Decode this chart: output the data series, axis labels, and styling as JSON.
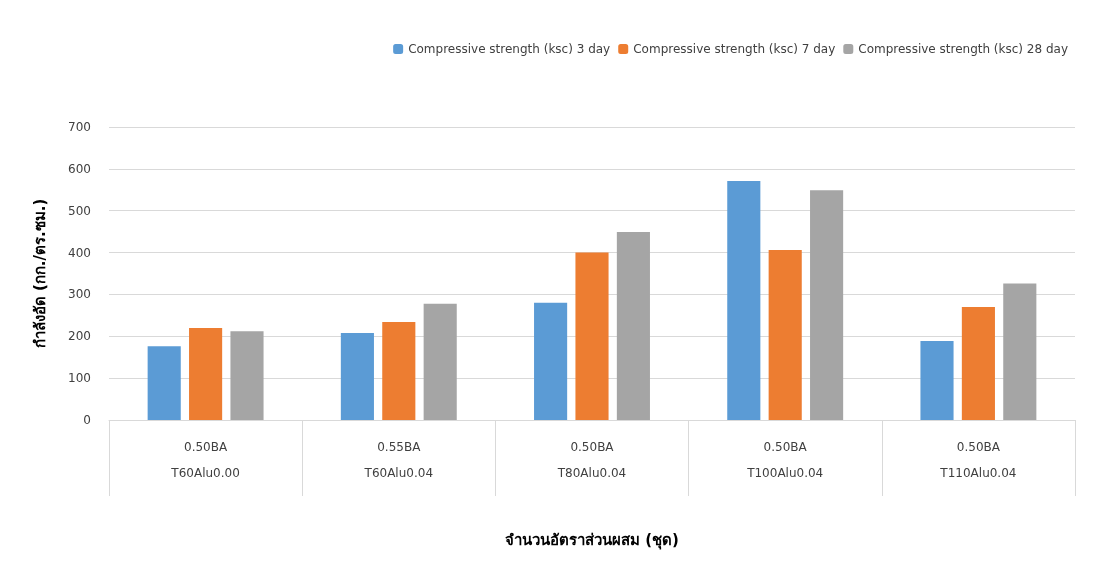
{
  "chart_data": {
    "type": "bar",
    "xlabel": "จำนวนอัตราส่วนผสม (ชุด)",
    "ylabel": "กำลังอัด (กก./ตร.ซม.)",
    "categories": [
      "0.50BA\nT60Alu0.00",
      "0.55BA\nT60Alu0.04",
      "0.50BA\nT80Alu0.04",
      "0.50BA\nT100Alu0.04",
      "0.50BA\nT110Alu0.04"
    ],
    "series": [
      {
        "name": "Compressive strength (ksc) 3 day",
        "color": "#5b9bd5",
        "values": [
          176,
          208,
          280,
          571,
          189
        ]
      },
      {
        "name": "Compressive strength (ksc) 7 day",
        "color": "#ed7d31",
        "values": [
          220,
          234,
          400,
          406,
          270
        ]
      },
      {
        "name": "Compressive strength (ksc) 28 day",
        "color": "#a5a5a5",
        "values": [
          212,
          278,
          449,
          549,
          326
        ]
      }
    ],
    "ylim": [
      0,
      700
    ],
    "yticks": [
      0,
      100,
      200,
      300,
      400,
      500,
      600,
      700
    ],
    "grid": "y",
    "legend": "top right"
  }
}
